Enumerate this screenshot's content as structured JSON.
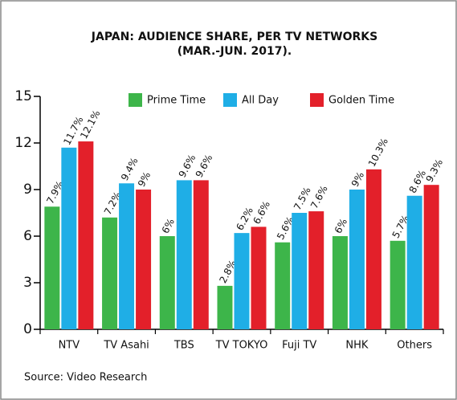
{
  "chart_data": {
    "type": "bar",
    "title": "JAPAN: AUDIENCE SHARE, PER TV NETWORKS",
    "subtitle": "(MAR.-JUN. 2017).",
    "source": "Source: Video Research",
    "categories": [
      "NTV",
      "TV Asahi",
      "TBS",
      "TV TOKYO",
      "Fuji TV",
      "NHK",
      "Others"
    ],
    "series": [
      {
        "name": "Prime Time",
        "color": "#3db54a",
        "values": [
          7.9,
          7.2,
          6,
          2.8,
          5.6,
          6,
          5.7
        ],
        "value_labels": [
          "7.9%",
          "7.2%",
          "6%",
          "2.8%",
          "5.6%",
          "6%",
          "5.7%"
        ]
      },
      {
        "name": "All Day",
        "color": "#1faee6",
        "values": [
          11.7,
          9.4,
          9.6,
          6.2,
          7.5,
          9,
          8.6
        ],
        "value_labels": [
          "11.7%",
          "9.4%",
          "9.6%",
          "6.2%",
          "7.5%",
          "9%",
          "8.6%"
        ]
      },
      {
        "name": "Golden Time",
        "color": "#e3202a",
        "values": [
          12.1,
          9,
          9.6,
          6.6,
          7.6,
          10.3,
          9.3
        ],
        "value_labels": [
          "12.1%",
          "9%",
          "9.6%",
          "6.6%",
          "7.6%",
          "10.3%",
          "9.3%"
        ]
      }
    ],
    "ylim": [
      0,
      15
    ],
    "yticks": [
      0,
      3,
      6,
      9,
      12,
      15
    ],
    "legend": "top"
  }
}
